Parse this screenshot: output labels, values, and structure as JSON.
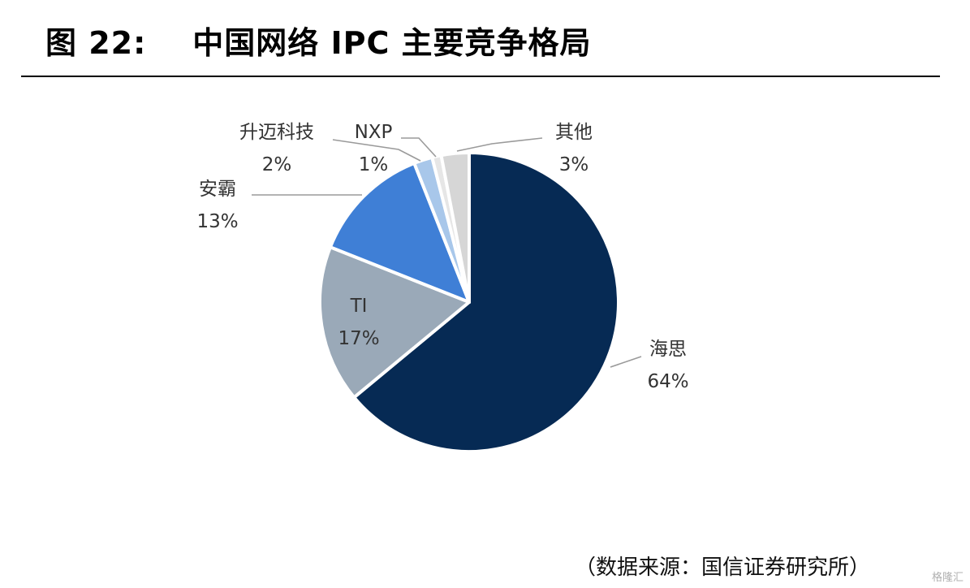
{
  "figure": {
    "title": "图 22:    中国网络 IPC 主要竞争格局",
    "source": "（数据来源：国信证券研究所）",
    "watermark": "格隆汇"
  },
  "chart_data": {
    "type": "pie",
    "title": "",
    "labels": [
      "海思",
      "TI",
      "安霸",
      "升迈科技",
      "NXP",
      "其他"
    ],
    "values": [
      64,
      17,
      13,
      2,
      1,
      3
    ],
    "value_labels": [
      "64%",
      "17%",
      "13%",
      "2%",
      "1%",
      "3%"
    ],
    "colors": [
      "#062a54",
      "#9aa9b8",
      "#3f7fd6",
      "#a8c7ea",
      "#e6e6e6",
      "#d6d6d6"
    ],
    "start": "12 o'clock, clockwise",
    "legend": "none (leader-line labels)"
  }
}
